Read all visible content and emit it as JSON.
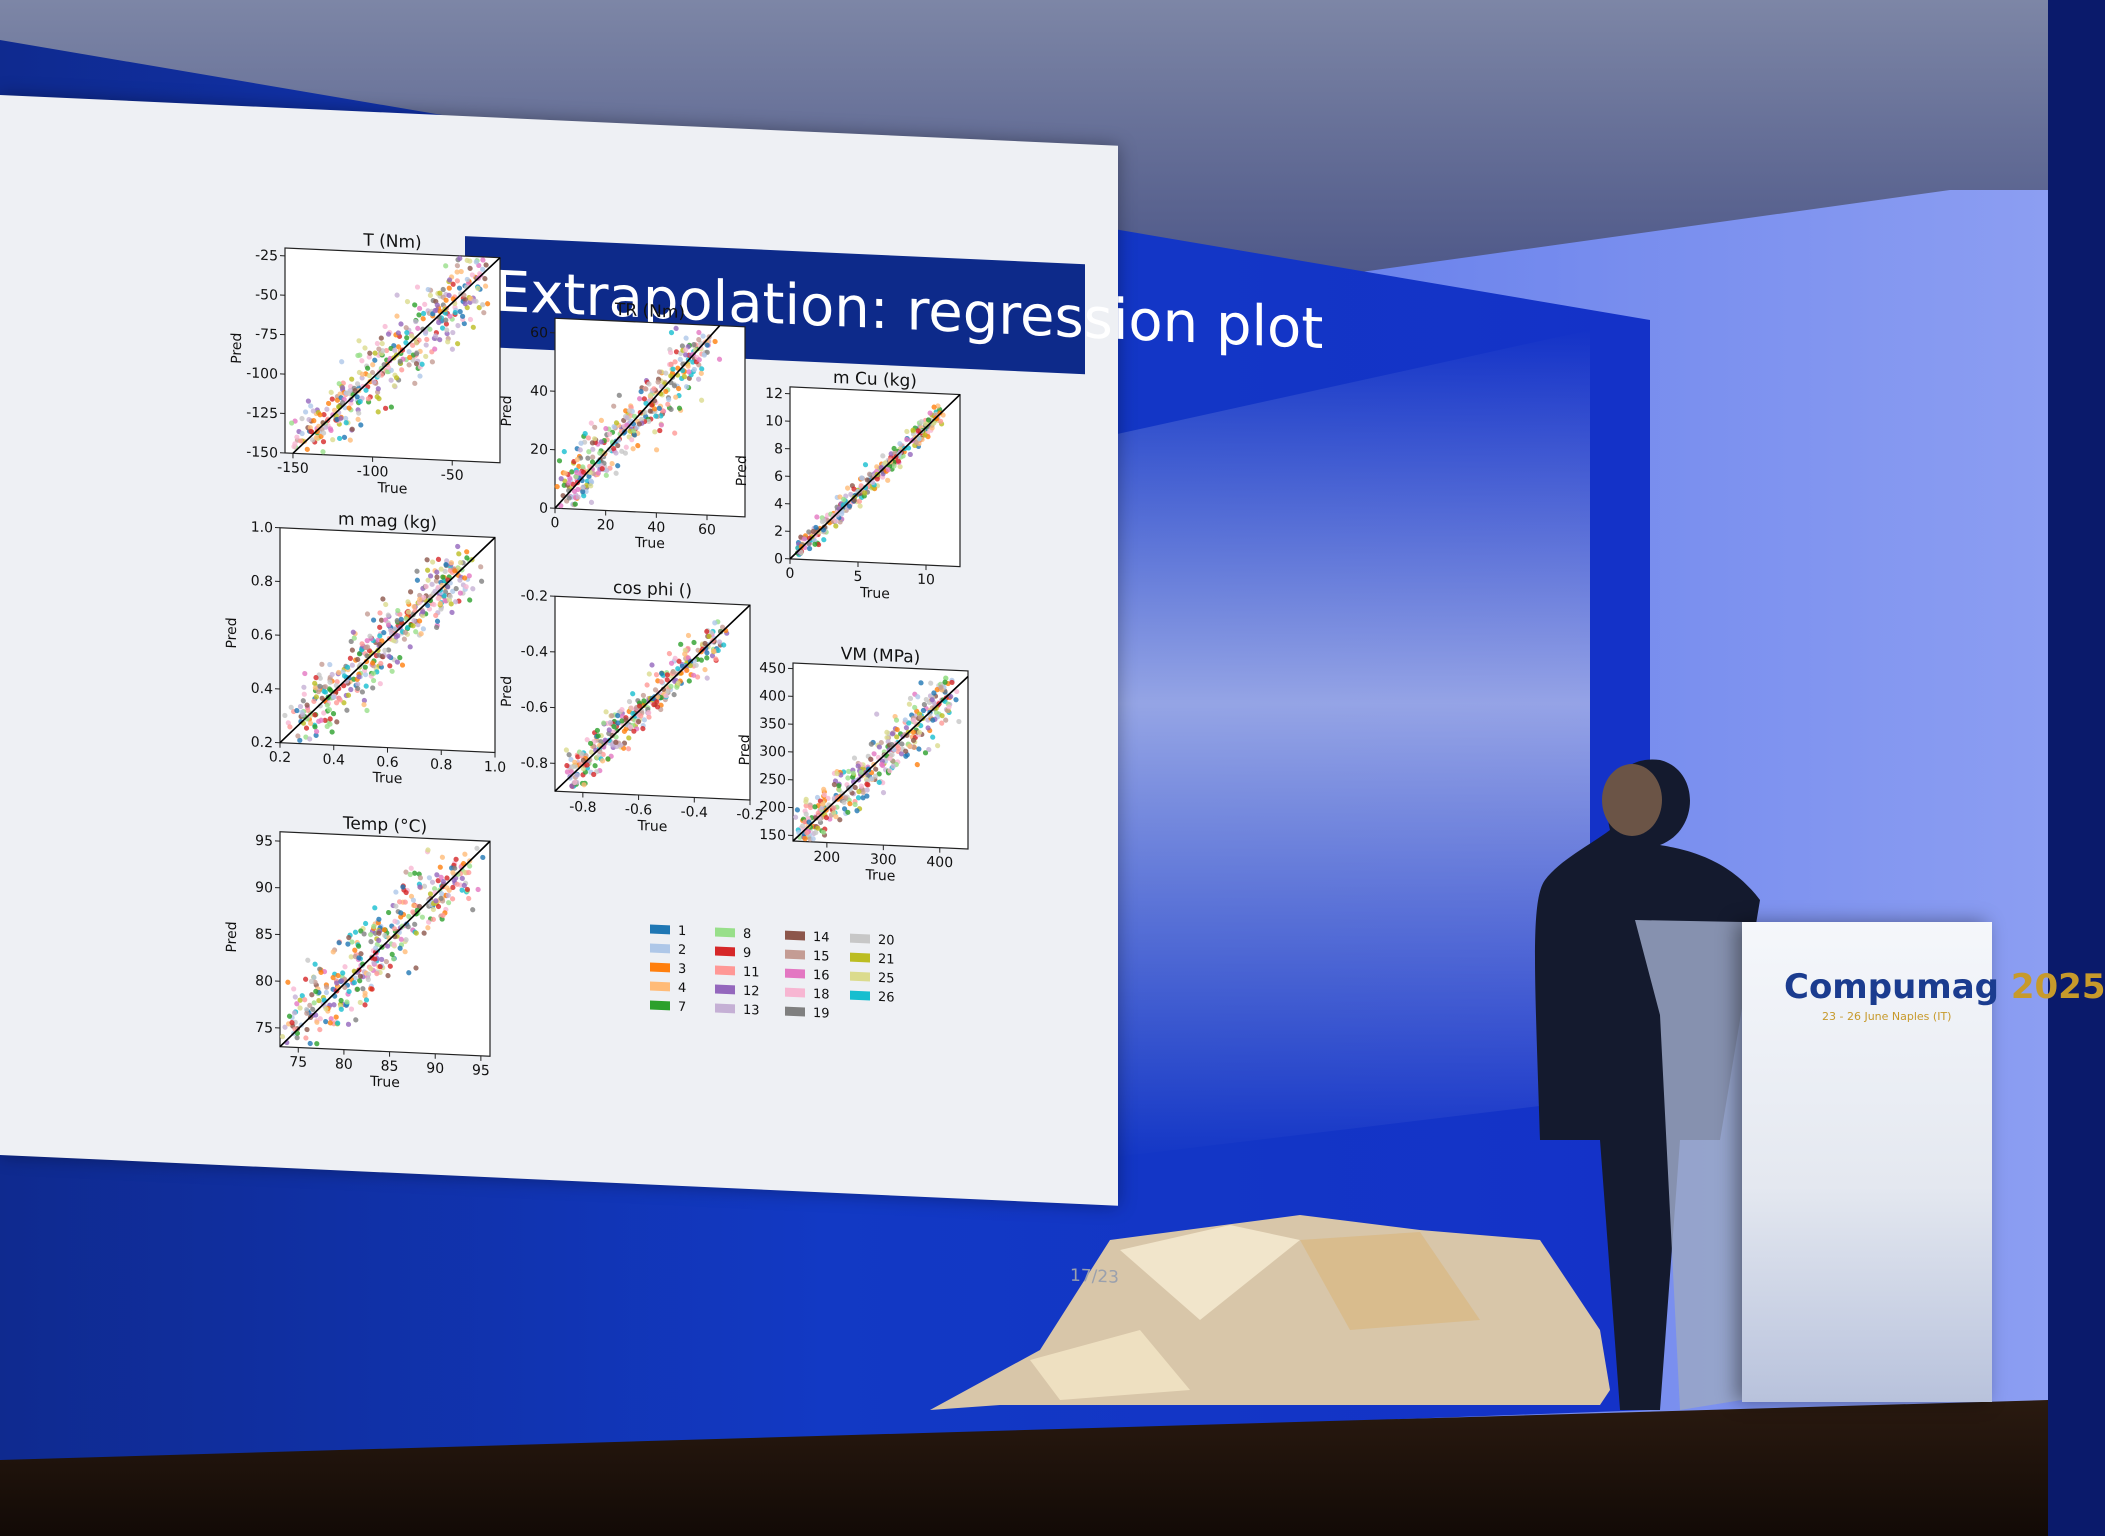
{
  "slide": {
    "title": "Extrapolation: regression plot",
    "page": "17/23"
  },
  "podium": {
    "brand": "ompumag",
    "brand_initial": "C",
    "year": "2025",
    "subtitle": "23 - 26 June Naples (IT)"
  },
  "colors": {
    "palette": [
      "#1f77b4",
      "#aec7e8",
      "#ff7f0e",
      "#ffbb78",
      "#2ca02c",
      "#98df8a",
      "#d62728",
      "#ff9896",
      "#9467bd",
      "#c5b0d5",
      "#8c564b",
      "#c49c94",
      "#e377c2",
      "#f7b6d2",
      "#7f7f7f",
      "#c7c7c7",
      "#bcbd22",
      "#dbdb8d",
      "#17becf"
    ],
    "slide_title_bar": "#0d2a8a",
    "stage_blue": "#1030c8"
  },
  "chart_data": [
    {
      "type": "scatter",
      "title": "T (Nm)",
      "xlabel": "True",
      "ylabel": "Pred",
      "xlim": [
        -155,
        -20
      ],
      "ylim": [
        -150,
        -20
      ],
      "xticks": [
        "-150",
        "-100",
        "-50"
      ],
      "xtick_values": [
        -150,
        -100,
        -50
      ],
      "yticks": [
        "-150",
        "-125",
        "-100",
        "-75",
        "-50",
        "-25"
      ],
      "ytick_values": [
        -150,
        -125,
        -100,
        -75,
        -50,
        -25
      ],
      "cloud": {
        "from": -148,
        "to": -30,
        "spread": 12,
        "n": 420
      }
    },
    {
      "type": "scatter",
      "title": "TR (Nm)",
      "xlabel": "True",
      "ylabel": "Pred",
      "xlim": [
        0,
        75
      ],
      "ylim": [
        0,
        65
      ],
      "xticks": [
        "0",
        "20",
        "40",
        "60"
      ],
      "xtick_values": [
        0,
        20,
        40,
        60
      ],
      "yticks": [
        "0",
        "20",
        "40",
        "60"
      ],
      "ytick_values": [
        0,
        20,
        40,
        60
      ],
      "cloud": {
        "from": 2,
        "to": 60,
        "spread": 6,
        "n": 380
      }
    },
    {
      "type": "scatter",
      "title": "m Cu (kg)",
      "xlabel": "True",
      "ylabel": "Pred",
      "xlim": [
        0,
        12.5
      ],
      "ylim": [
        0,
        12.5
      ],
      "xticks": [
        "0",
        "5",
        "10"
      ],
      "xtick_values": [
        0,
        5,
        10
      ],
      "yticks": [
        "0",
        "2",
        "4",
        "6",
        "8",
        "10",
        "12"
      ],
      "ytick_values": [
        0,
        2,
        4,
        6,
        8,
        10,
        12
      ],
      "cloud": {
        "from": 0.3,
        "to": 11,
        "spread": 0.4,
        "n": 340
      }
    },
    {
      "type": "scatter",
      "title": "m mag (kg)",
      "xlabel": "True",
      "ylabel": "Pred",
      "xlim": [
        0.2,
        1.0
      ],
      "ylim": [
        0.2,
        1.0
      ],
      "xticks": [
        "0.2",
        "0.4",
        "0.6",
        "0.8",
        "1.0"
      ],
      "xtick_values": [
        0.2,
        0.4,
        0.6,
        0.8,
        1.0
      ],
      "yticks": [
        "0.2",
        "0.4",
        "0.6",
        "0.8",
        "1.0"
      ],
      "ytick_values": [
        0.2,
        0.4,
        0.6,
        0.8,
        1.0
      ],
      "cloud": {
        "from": 0.25,
        "to": 0.9,
        "spread": 0.06,
        "n": 420
      }
    },
    {
      "type": "scatter",
      "title": "cos phi ()",
      "xlabel": "True",
      "ylabel": "Pred",
      "xlim": [
        -0.9,
        -0.2
      ],
      "ylim": [
        -0.9,
        -0.2
      ],
      "xticks": [
        "-0.8",
        "-0.6",
        "-0.4",
        "-0.2"
      ],
      "xtick_values": [
        -0.8,
        -0.6,
        -0.4,
        -0.2
      ],
      "yticks": [
        "-0.8",
        "-0.6",
        "-0.4",
        "-0.2"
      ],
      "ytick_values": [
        -0.8,
        -0.6,
        -0.4,
        -0.2
      ],
      "cloud": {
        "from": -0.85,
        "to": -0.3,
        "spread": 0.04,
        "n": 360
      }
    },
    {
      "type": "scatter",
      "title": "VM (MPa)",
      "xlabel": "True",
      "ylabel": "Pred",
      "xlim": [
        140,
        450
      ],
      "ylim": [
        140,
        460
      ],
      "xticks": [
        "200",
        "300",
        "400"
      ],
      "xtick_values": [
        200,
        300,
        400
      ],
      "yticks": [
        "150",
        "200",
        "250",
        "300",
        "350",
        "400",
        "450"
      ],
      "ytick_values": [
        150,
        200,
        250,
        300,
        350,
        400,
        450
      ],
      "cloud": {
        "from": 150,
        "to": 420,
        "spread": 25,
        "n": 400
      }
    },
    {
      "type": "scatter",
      "title": "Temp (°C)",
      "xlabel": "True",
      "ylabel": "Pred",
      "xlim": [
        73,
        96
      ],
      "ylim": [
        73,
        96
      ],
      "xticks": [
        "75",
        "80",
        "85",
        "90",
        "95"
      ],
      "xtick_values": [
        75,
        80,
        85,
        90,
        95
      ],
      "yticks": [
        "75",
        "80",
        "85",
        "90",
        "95"
      ],
      "ytick_values": [
        75,
        80,
        85,
        90,
        95
      ],
      "cloud": {
        "from": 74,
        "to": 94,
        "spread": 2.2,
        "n": 420
      }
    }
  ],
  "legend": {
    "columns": [
      [
        {
          "label": "1",
          "color": "#1f77b4"
        },
        {
          "label": "2",
          "color": "#aec7e8"
        },
        {
          "label": "3",
          "color": "#ff7f0e"
        },
        {
          "label": "4",
          "color": "#ffbb78"
        },
        {
          "label": "7",
          "color": "#2ca02c"
        }
      ],
      [
        {
          "label": "8",
          "color": "#98df8a"
        },
        {
          "label": "9",
          "color": "#d62728"
        },
        {
          "label": "11",
          "color": "#ff9896"
        },
        {
          "label": "12",
          "color": "#9467bd"
        },
        {
          "label": "13",
          "color": "#c5b0d5"
        }
      ],
      [
        {
          "label": "14",
          "color": "#8c564b"
        },
        {
          "label": "15",
          "color": "#c49c94"
        },
        {
          "label": "16",
          "color": "#e377c2"
        },
        {
          "label": "18",
          "color": "#f7b6d2"
        },
        {
          "label": "19",
          "color": "#7f7f7f"
        }
      ],
      [
        {
          "label": "20",
          "color": "#c7c7c7"
        },
        {
          "label": "21",
          "color": "#bcbd22"
        },
        {
          "label": "25",
          "color": "#dbdb8d"
        },
        {
          "label": "26",
          "color": "#17becf"
        }
      ]
    ]
  }
}
